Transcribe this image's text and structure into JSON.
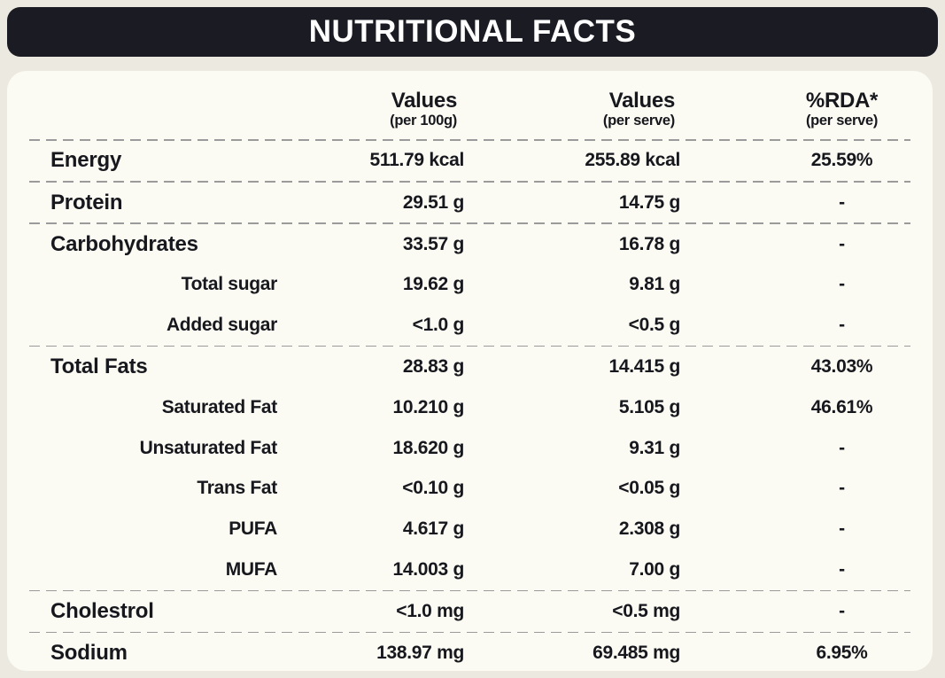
{
  "title": "NUTRITIONAL FACTS",
  "colors": {
    "page_background": "#ECEAE0",
    "card_background": "#FBFAF3",
    "banner_background": "#1B1C23",
    "banner_text": "#FFFFFF",
    "text": "#17181D",
    "divider": "#9B9B9B"
  },
  "columns": {
    "per100g": {
      "label": "Values",
      "sublabel": "(per 100g)"
    },
    "perServe": {
      "label": "Values",
      "sublabel": "(per serve)"
    },
    "rda": {
      "label": "%RDA*",
      "sublabel": "(per serve)"
    }
  },
  "rows": [
    {
      "name": "Energy",
      "level": "group",
      "per100g": "511.79 kcal",
      "perServe": "255.89 kcal",
      "rda": "25.59%"
    },
    {
      "name": "Protein",
      "level": "group",
      "per100g": "29.51 g",
      "perServe": "14.75 g",
      "rda": "-"
    },
    {
      "name": "Carbohydrates",
      "level": "group",
      "per100g": "33.57 g",
      "perServe": "16.78 g",
      "rda": "-"
    },
    {
      "name": "Total sugar",
      "level": "sub",
      "per100g": "19.62 g",
      "perServe": "9.81 g",
      "rda": "-"
    },
    {
      "name": "Added sugar",
      "level": "sub",
      "per100g": "<1.0 g",
      "perServe": "<0.5 g",
      "rda": "-"
    },
    {
      "name": "Total Fats",
      "level": "group",
      "per100g": "28.83 g",
      "perServe": "14.415 g",
      "rda": "43.03%"
    },
    {
      "name": "Saturated Fat",
      "level": "sub",
      "per100g": "10.210 g",
      "perServe": "5.105 g",
      "rda": "46.61%"
    },
    {
      "name": "Unsaturated Fat",
      "level": "sub",
      "per100g": "18.620 g",
      "perServe": "9.31 g",
      "rda": "-"
    },
    {
      "name": "Trans Fat",
      "level": "sub",
      "per100g": "<0.10 g",
      "perServe": "<0.05 g",
      "rda": "-"
    },
    {
      "name": "PUFA",
      "level": "sub",
      "per100g": "4.617 g",
      "perServe": "2.308 g",
      "rda": "-"
    },
    {
      "name": "MUFA",
      "level": "sub",
      "per100g": "14.003 g",
      "perServe": "7.00 g",
      "rda": "-"
    },
    {
      "name": "Cholestrol",
      "level": "group",
      "per100g": "<1.0 mg",
      "perServe": "<0.5 mg",
      "rda": "-"
    },
    {
      "name": "Sodium",
      "level": "group",
      "per100g": "138.97 mg",
      "perServe": "69.485 mg",
      "rda": "6.95%"
    }
  ]
}
